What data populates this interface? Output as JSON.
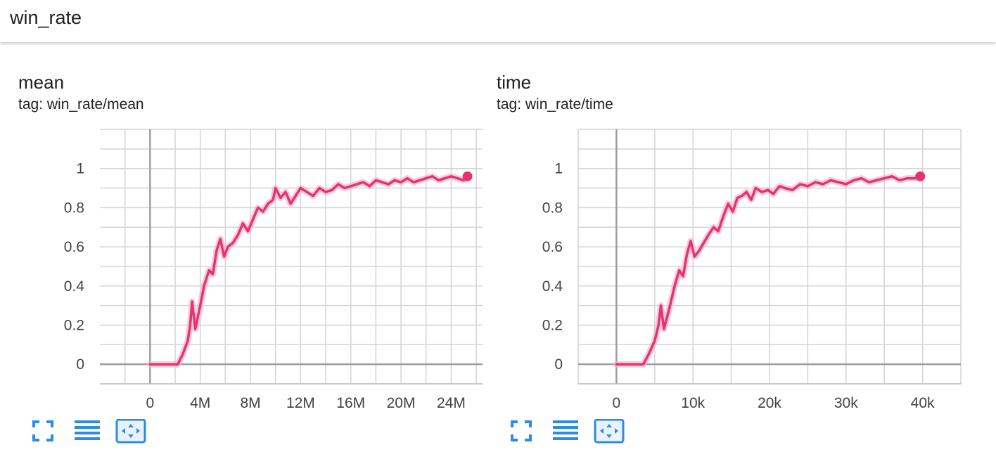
{
  "header": {
    "title": "win_rate"
  },
  "colors": {
    "series": "#e8326f",
    "band": "#f5b8cd",
    "grid": "#d4d4d4",
    "axis": "#9e9e9e",
    "icon": "#2c8ae8"
  },
  "cards": [
    {
      "title": "mean",
      "tag": "tag: win_rate/mean",
      "toolbar": {
        "fit_icon": "fit-domain-icon",
        "log_icon": "log-scale-icon",
        "expand_icon": "expand-chart-icon"
      }
    },
    {
      "title": "time",
      "tag": "tag: win_rate/time",
      "toolbar": {
        "fit_icon": "fit-domain-icon",
        "log_icon": "log-scale-icon",
        "expand_icon": "expand-chart-icon"
      }
    }
  ],
  "chart_data": [
    {
      "type": "line",
      "title": "mean",
      "xlabel": "",
      "ylabel": "",
      "xlim": [
        -4000000,
        26500000
      ],
      "ylim": [
        -0.1,
        1.2
      ],
      "x_ticks": [
        0,
        4000000,
        8000000,
        12000000,
        16000000,
        20000000,
        24000000
      ],
      "x_tick_labels": [
        "0",
        "4M",
        "8M",
        "12M",
        "16M",
        "20M",
        "24M"
      ],
      "y_ticks": [
        0,
        0.2,
        0.4,
        0.6,
        0.8,
        1
      ],
      "y_tick_labels": [
        "0",
        "0.2",
        "0.4",
        "0.6",
        "0.8",
        "1"
      ],
      "grid": true,
      "series": [
        {
          "x": [
            0,
            1000000,
            2200000,
            2600000,
            3000000,
            3200000,
            3350000,
            3600000,
            4000000,
            4300000,
            4700000,
            5000000,
            5300000,
            5600000,
            5900000,
            6200000,
            6600000,
            7000000,
            7400000,
            7800000,
            8200000,
            8600000,
            9000000,
            9400000,
            9800000,
            10000000,
            10400000,
            10800000,
            11200000,
            11600000,
            12000000,
            12500000,
            13000000,
            13500000,
            14000000,
            14500000,
            15000000,
            15500000,
            16000000,
            16500000,
            17000000,
            17500000,
            18000000,
            18500000,
            19000000,
            19500000,
            20000000,
            20500000,
            21000000,
            21500000,
            22000000,
            22500000,
            23000000,
            23500000,
            24000000,
            24500000,
            25000000,
            25300000
          ],
          "values": [
            0,
            0,
            0,
            0.05,
            0.12,
            0.2,
            0.32,
            0.18,
            0.3,
            0.4,
            0.48,
            0.46,
            0.58,
            0.64,
            0.55,
            0.6,
            0.62,
            0.66,
            0.72,
            0.68,
            0.74,
            0.8,
            0.78,
            0.82,
            0.84,
            0.9,
            0.85,
            0.88,
            0.82,
            0.86,
            0.9,
            0.88,
            0.86,
            0.9,
            0.88,
            0.89,
            0.92,
            0.9,
            0.91,
            0.92,
            0.93,
            0.91,
            0.94,
            0.93,
            0.92,
            0.94,
            0.93,
            0.95,
            0.93,
            0.94,
            0.95,
            0.96,
            0.94,
            0.95,
            0.96,
            0.95,
            0.94,
            0.96
          ]
        }
      ]
    },
    {
      "type": "line",
      "title": "time",
      "xlabel": "",
      "ylabel": "",
      "xlim": [
        -5000,
        45000
      ],
      "ylim": [
        -0.1,
        1.2
      ],
      "x_ticks": [
        0,
        10000,
        20000,
        30000,
        40000
      ],
      "x_tick_labels": [
        "0",
        "10k",
        "20k",
        "30k",
        "40k"
      ],
      "y_ticks": [
        0,
        0.2,
        0.4,
        0.6,
        0.8,
        1
      ],
      "y_tick_labels": [
        "0",
        "0.2",
        "0.4",
        "0.6",
        "0.8",
        "1"
      ],
      "grid": true,
      "series": [
        {
          "x": [
            0,
            2000,
            3500,
            4200,
            5000,
            5500,
            5800,
            6200,
            7000,
            7600,
            8200,
            8700,
            9200,
            9700,
            10200,
            10800,
            11400,
            12000,
            12700,
            13300,
            14000,
            14600,
            15200,
            15800,
            16400,
            17000,
            17600,
            18200,
            19000,
            19800,
            20500,
            21300,
            22000,
            23000,
            24000,
            25000,
            26000,
            27000,
            28000,
            29000,
            30000,
            31000,
            32000,
            33000,
            34000,
            35000,
            36000,
            37000,
            38000,
            39000,
            39700
          ],
          "values": [
            0,
            0,
            0,
            0.05,
            0.12,
            0.2,
            0.3,
            0.18,
            0.3,
            0.4,
            0.48,
            0.45,
            0.56,
            0.63,
            0.55,
            0.58,
            0.62,
            0.66,
            0.7,
            0.68,
            0.76,
            0.82,
            0.78,
            0.85,
            0.86,
            0.88,
            0.84,
            0.9,
            0.88,
            0.89,
            0.87,
            0.91,
            0.9,
            0.89,
            0.92,
            0.91,
            0.93,
            0.92,
            0.94,
            0.93,
            0.92,
            0.94,
            0.95,
            0.93,
            0.94,
            0.95,
            0.96,
            0.94,
            0.95,
            0.95,
            0.96
          ]
        }
      ]
    }
  ]
}
